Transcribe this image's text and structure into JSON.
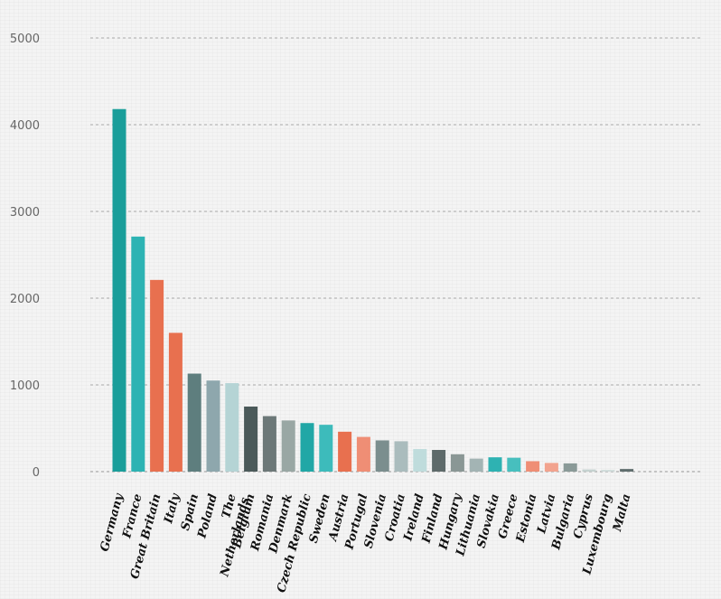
{
  "chart_data": {
    "type": "bar",
    "title": "",
    "xlabel": "",
    "ylabel": "",
    "ylim": [
      0,
      5000
    ],
    "yticks": [
      0,
      1000,
      2000,
      3000,
      4000,
      5000
    ],
    "grid": true,
    "categories": [
      "Germany",
      "France",
      "Great Britain",
      "Italy",
      "Spain",
      "Poland",
      "The Netherlands",
      "Belgium",
      "Romania",
      "Denmark",
      "Czech Republic",
      "Sweden",
      "Austria",
      "Portugal",
      "Slovenia",
      "Croatia",
      "Ireland",
      "Finland",
      "Hungary",
      "Lithuania",
      "Slovakia",
      "Greece",
      "Estonia",
      "Latvia",
      "Bulgaria",
      "Cyprus",
      "Luxembourg",
      "Malta"
    ],
    "values": [
      4180,
      2710,
      2210,
      1600,
      1130,
      1050,
      1020,
      750,
      640,
      590,
      560,
      540,
      460,
      400,
      360,
      350,
      260,
      250,
      200,
      150,
      165,
      160,
      120,
      100,
      95,
      25,
      20,
      30
    ],
    "colors": [
      "#1a9e9a",
      "#2db3b3",
      "#e8704f",
      "#e8704f",
      "#5e7e7e",
      "#8ea7ad",
      "#b5d4d5",
      "#4b5a5a",
      "#6c7878",
      "#99a7a4",
      "#21a7a6",
      "#3dbbbb",
      "#e8704f",
      "#ef8e75",
      "#7b8e8e",
      "#aabcbd",
      "#bfdcdc",
      "#5e6a6a",
      "#8a9795",
      "#a3b4b4",
      "#2eb2b2",
      "#47bfbe",
      "#ef8e75",
      "#f2a38e",
      "#8a9a98",
      "#c5d2d0",
      "#d0dcdb",
      "#5f6d6d"
    ]
  }
}
